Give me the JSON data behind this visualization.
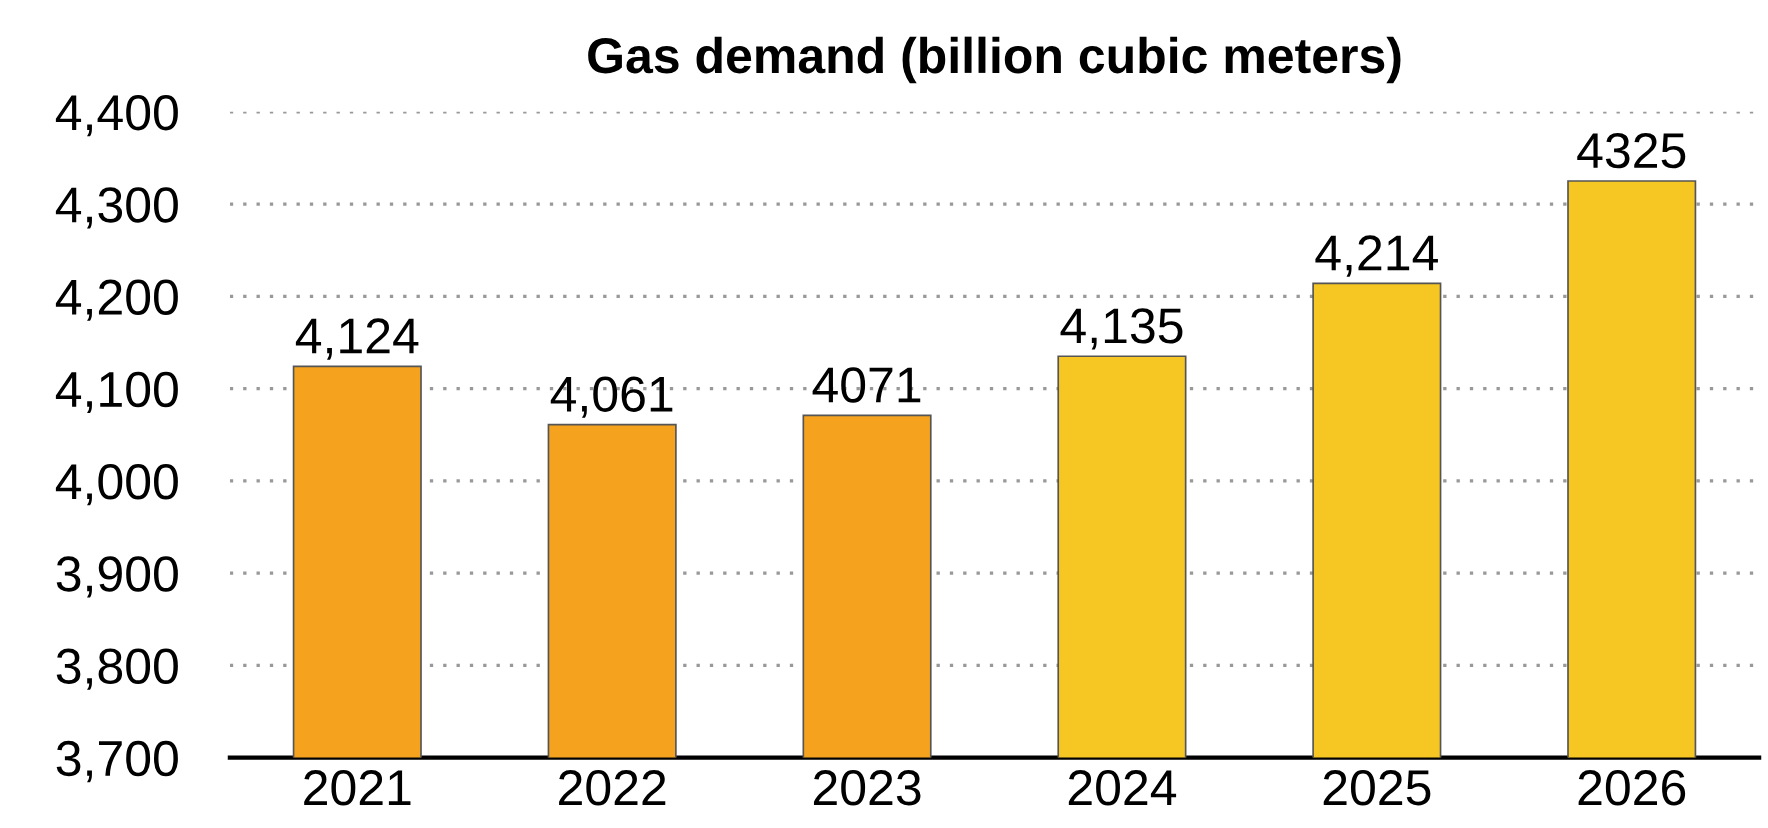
{
  "chart_data": {
    "type": "bar",
    "title": "Gas demand (billion cubic meters)",
    "categories": [
      "2021",
      "2022",
      "2023",
      "2024",
      "2025",
      "2026"
    ],
    "values": [
      4124,
      4061,
      4071,
      4135,
      4214,
      4325
    ],
    "colors": [
      "#f5a31f",
      "#f5a31f",
      "#f5a31f",
      "#f6c623",
      "#f6c623",
      "#f6c623"
    ],
    "value_labels": [
      "4,124",
      "4,061",
      "4071",
      "4,135",
      "4,214",
      "4325"
    ],
    "ylim": [
      3700,
      4400
    ],
    "yticks": [
      {
        "value": 3700,
        "label": "3,700"
      },
      {
        "value": 3800,
        "label": "3,800"
      },
      {
        "value": 3900,
        "label": "3,900"
      },
      {
        "value": 4000,
        "label": "4,000"
      },
      {
        "value": 4100,
        "label": "4,100"
      },
      {
        "value": 4200,
        "label": "4,200"
      },
      {
        "value": 4300,
        "label": "4,300"
      },
      {
        "value": 4400,
        "label": "4,400"
      }
    ],
    "grid": "y"
  }
}
